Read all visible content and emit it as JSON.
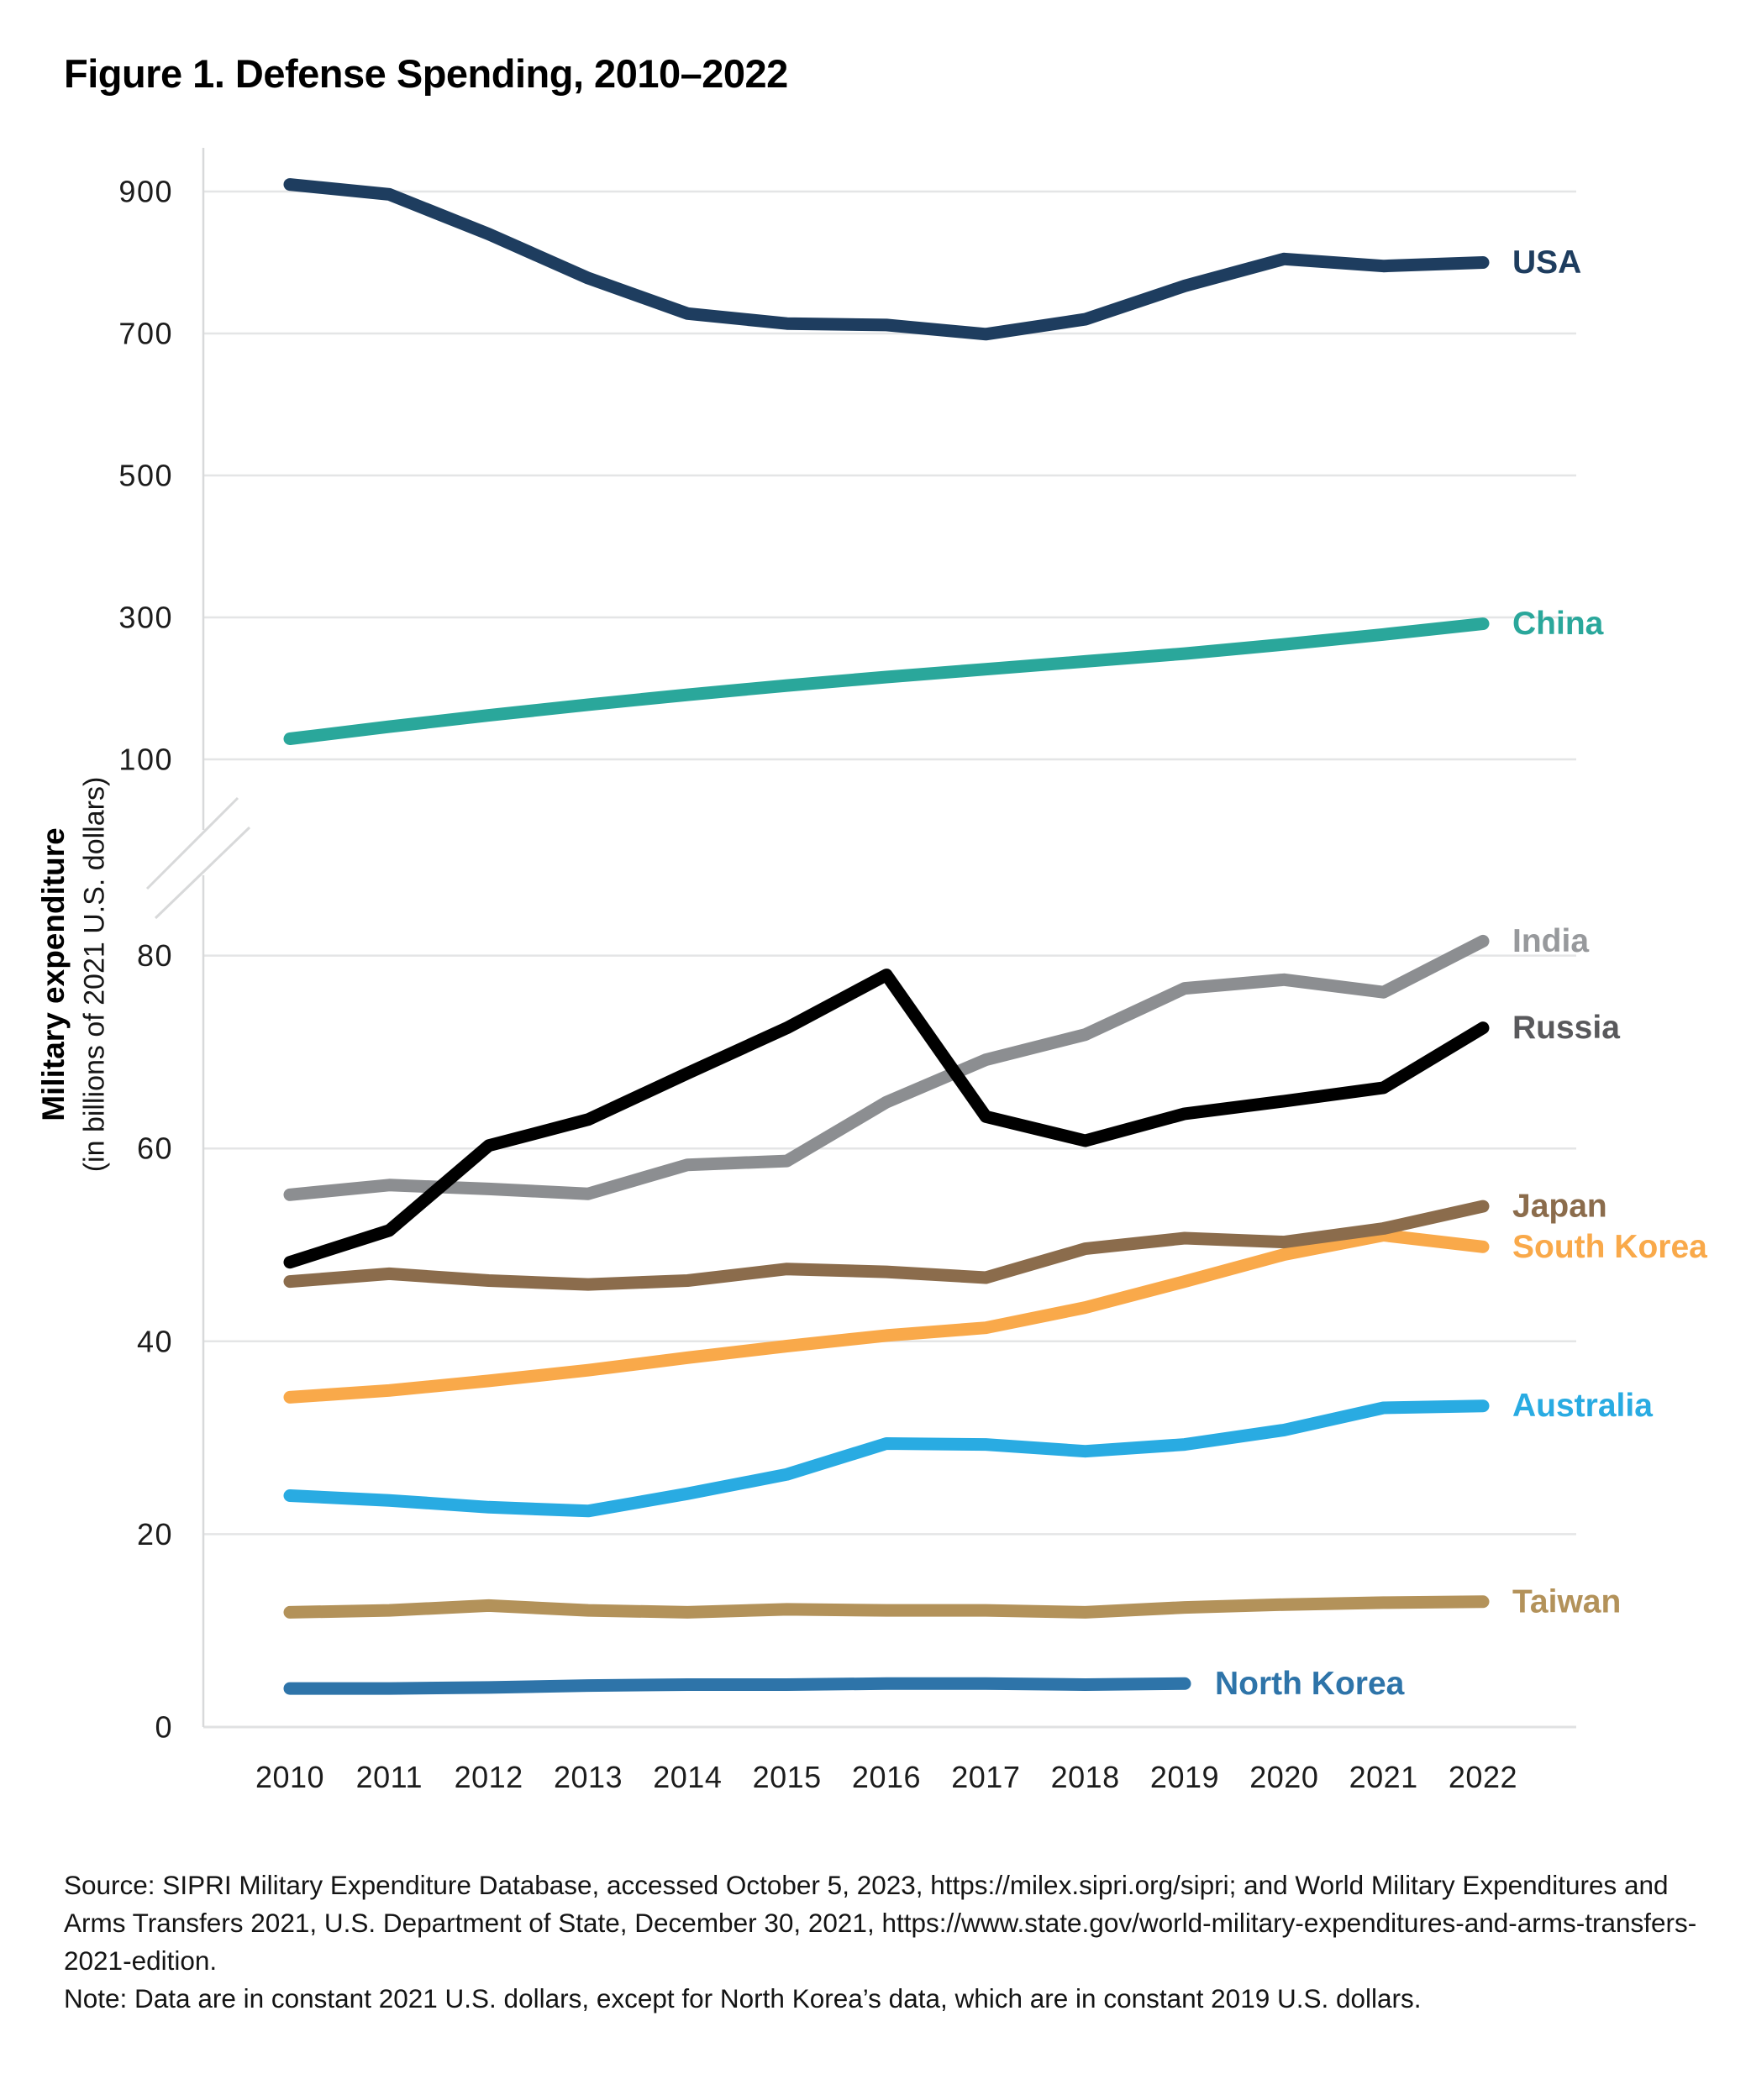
{
  "figure": {
    "title": "Figure 1. Defense Spending, 2010–2022",
    "y_axis_title": "Military expenditure",
    "y_axis_subtitle": "(in billions of 2021 U.S. dollars)",
    "source_text": "Source: SIPRI Military Expenditure Database, accessed October 5, 2023, https://milex.sipri.org/sipri; and World Military Expenditures and Arms Transfers 2021, U.S. Department of State, December 30, 2021, https://www.state.gov/world-military-expenditures-and-arms-transfers-2021-edition.",
    "note_text": "Note: Data are in constant 2021 U.S. dollars, except for North Korea’s data, which are in constant 2019 U.S. dollars."
  },
  "chart_data": {
    "type": "line",
    "title": "Figure 1. Defense Spending, 2010–2022",
    "xlabel": "",
    "ylabel": "Military expenditure (in billions of 2021 U.S. dollars)",
    "grid": "horizontal gridlines only, light gray",
    "legend_position": "inline labels at right ends of lines",
    "x": [
      2010,
      2011,
      2012,
      2013,
      2014,
      2015,
      2016,
      2017,
      2018,
      2019,
      2020,
      2021,
      2022
    ],
    "x_tick_labels": [
      "2010",
      "2011",
      "2012",
      "2013",
      "2014",
      "2015",
      "2016",
      "2017",
      "2018",
      "2019",
      "2020",
      "2021",
      "2022"
    ],
    "broken_y_axis": {
      "break_between": [
        88,
        100
      ],
      "top_panel": {
        "ticks": [
          900,
          700,
          500,
          300,
          100
        ],
        "range": [
          100,
          955
        ]
      },
      "bottom_panel": {
        "ticks": [
          80,
          60,
          40,
          20,
          0
        ],
        "range": [
          0,
          88
        ]
      }
    },
    "series": [
      {
        "name": "North Korea",
        "panel": "bottom",
        "color": "#2e74a9",
        "label_color": "#2e74a9",
        "label_inline_at_line_end": true,
        "values": [
          4.0,
          4.0,
          4.1,
          4.3,
          4.4,
          4.4,
          4.5,
          4.5,
          4.4,
          4.5
        ]
      },
      {
        "name": "Taiwan",
        "panel": "bottom",
        "color": "#b3925a",
        "label_color": "#b3925a",
        "values": [
          11.9,
          12.1,
          12.6,
          12.1,
          11.9,
          12.2,
          12.1,
          12.1,
          11.9,
          12.4,
          12.7,
          12.9,
          13.0
        ]
      },
      {
        "name": "Australia",
        "panel": "bottom",
        "color": "#29abe2",
        "label_color": "#29abe2",
        "values": [
          24.0,
          23.5,
          22.8,
          22.4,
          24.2,
          26.2,
          29.4,
          29.3,
          28.6,
          29.3,
          30.8,
          33.1,
          33.3
        ]
      },
      {
        "name": "South Korea",
        "panel": "bottom",
        "color": "#f9a94a",
        "label_color": "#f9a94a",
        "values": [
          34.2,
          34.9,
          35.9,
          37.0,
          38.3,
          39.5,
          40.6,
          41.4,
          43.5,
          46.2,
          49.0,
          51.0,
          49.8
        ]
      },
      {
        "name": "Japan",
        "panel": "bottom",
        "color": "#8b6c4c",
        "label_color": "#8b6c4c",
        "values": [
          46.2,
          47.0,
          46.3,
          45.9,
          46.3,
          47.5,
          47.2,
          46.6,
          49.6,
          50.7,
          50.3,
          51.7,
          54.0
        ]
      },
      {
        "name": "India",
        "panel": "bottom",
        "color": "#8c8e91",
        "label_color": "#97999c",
        "values": [
          55.2,
          56.2,
          55.8,
          55.3,
          58.3,
          58.7,
          64.8,
          69.2,
          71.8,
          76.6,
          77.5,
          76.2,
          81.5
        ]
      },
      {
        "name": "Russia",
        "panel": "bottom",
        "color": "#000000",
        "label_color": "#59595c",
        "values": [
          48.2,
          51.5,
          60.3,
          63.0,
          67.8,
          72.5,
          78.0,
          63.3,
          60.8,
          63.6,
          64.9,
          66.3,
          72.5
        ]
      },
      {
        "name": "China",
        "panel": "top",
        "color": "#2aa79b",
        "label_color": "#2aa79b",
        "values": [
          129,
          146,
          162,
          177,
          191,
          204,
          216,
          227,
          238,
          249,
          262,
          276,
          291
        ]
      },
      {
        "name": "USA",
        "panel": "top",
        "color": "#1e3d5f",
        "label_color": "#1e3d5f",
        "values": [
          910,
          896,
          840,
          778,
          728,
          714,
          712,
          699,
          720,
          767,
          805,
          795,
          800
        ]
      }
    ]
  }
}
